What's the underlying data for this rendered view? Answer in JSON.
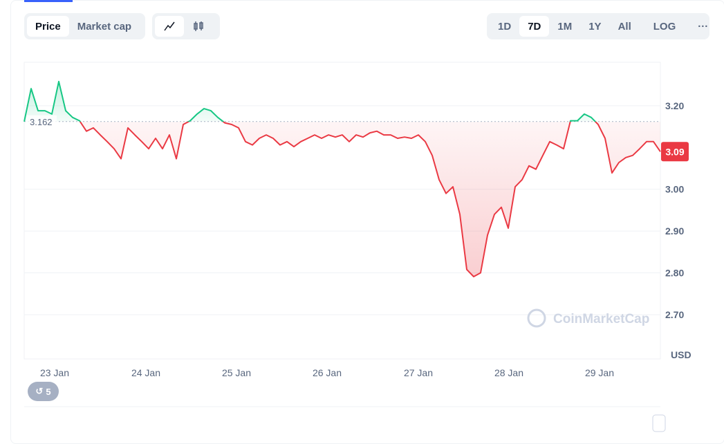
{
  "toolbar": {
    "price": "Price",
    "market_cap": "Market cap",
    "ranges": [
      "1D",
      "7D",
      "1M",
      "1Y",
      "All"
    ],
    "log": "LOG",
    "more": "···",
    "badge": "5"
  },
  "chart_data": {
    "type": "line",
    "watermark": "CoinMarketCap",
    "y_unit": "USD",
    "reference": 3.162,
    "values": [
      3.162,
      3.241,
      3.188,
      3.188,
      3.18,
      3.258,
      3.188,
      3.172,
      3.164,
      3.139,
      3.147,
      3.13,
      3.114,
      3.097,
      3.073,
      3.147,
      3.13,
      3.114,
      3.097,
      3.122,
      3.097,
      3.13,
      3.073,
      3.155,
      3.164,
      3.18,
      3.193,
      3.188,
      3.172,
      3.159,
      3.155,
      3.147,
      3.114,
      3.106,
      3.122,
      3.13,
      3.122,
      3.106,
      3.114,
      3.102,
      3.114,
      3.122,
      3.13,
      3.122,
      3.13,
      3.125,
      3.13,
      3.114,
      3.13,
      3.125,
      3.135,
      3.139,
      3.13,
      3.13,
      3.122,
      3.125,
      3.122,
      3.13,
      3.114,
      3.081,
      3.023,
      2.99,
      3.006,
      2.94,
      2.808,
      2.791,
      2.8,
      2.89,
      2.94,
      2.957,
      2.907,
      3.006,
      3.023,
      3.056,
      3.048,
      3.081,
      3.114,
      3.106,
      3.097,
      3.164,
      3.164,
      3.18,
      3.172,
      3.155,
      3.122,
      3.039,
      3.064,
      3.076,
      3.081,
      3.097,
      3.114,
      3.114,
      3.09
    ],
    "xlim": [
      0,
      92
    ],
    "xticks": [
      {
        "value": 4.4,
        "label": "23 Jan"
      },
      {
        "value": 17.6,
        "label": "24 Jan"
      },
      {
        "value": 30.7,
        "label": "25 Jan"
      },
      {
        "value": 43.8,
        "label": "26 Jan"
      },
      {
        "value": 57,
        "label": "27 Jan"
      },
      {
        "value": 70.1,
        "label": "28 Jan"
      },
      {
        "value": 83.2,
        "label": "29 Jan"
      }
    ],
    "ylim": [
      2.594,
      3.304
    ],
    "yticks": [
      {
        "value": 2.7,
        "label": "2.70"
      },
      {
        "value": 2.8,
        "label": "2.80"
      },
      {
        "value": 2.9,
        "label": "2.90"
      },
      {
        "value": 3.0,
        "label": "3.00"
      },
      {
        "value": 3.2,
        "label": "3.20"
      }
    ],
    "grid": true,
    "up_color": "#16c784",
    "down_color": "#ea3943"
  }
}
